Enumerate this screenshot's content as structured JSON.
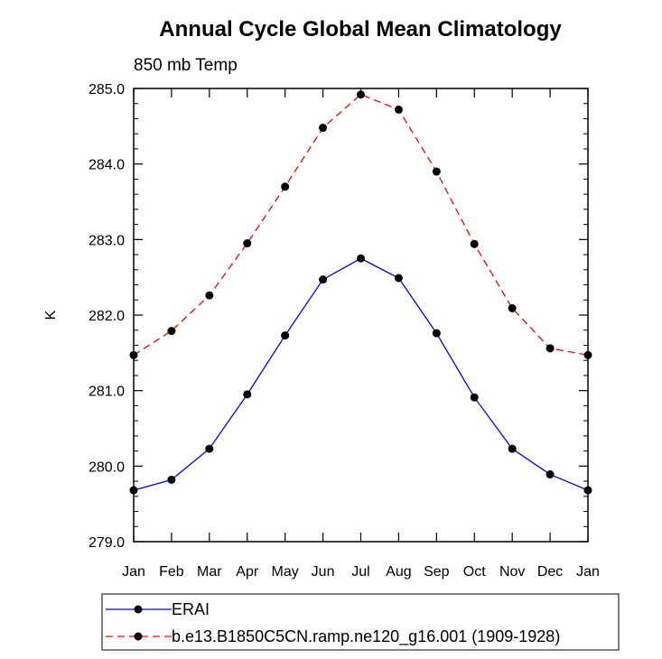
{
  "chart_data": {
    "type": "line",
    "title": "Annual Cycle Global Mean Climatology",
    "subtitle": "850 mb Temp",
    "xlabel": "",
    "ylabel": "K",
    "categories": [
      "Jan",
      "Feb",
      "Mar",
      "Apr",
      "May",
      "Jun",
      "Jul",
      "Aug",
      "Sep",
      "Oct",
      "Nov",
      "Dec",
      "Jan"
    ],
    "ylim": [
      279.0,
      285.0
    ],
    "yticks": [
      "279.0",
      "280.0",
      "281.0",
      "282.0",
      "283.0",
      "284.0",
      "285.0"
    ],
    "grid": false,
    "legend_position": "bottom",
    "series": [
      {
        "name": "ERAI",
        "color": "#0000ff",
        "dash": "solid",
        "marker": "circle",
        "values": [
          279.68,
          279.82,
          280.23,
          280.95,
          281.73,
          282.47,
          282.75,
          282.49,
          281.76,
          280.91,
          280.23,
          279.89,
          279.68
        ]
      },
      {
        "name": "b.e13.B1850C5CN.ramp.ne120_g16.001 (1909-1928)",
        "color": "#ff0000",
        "dash": "dashed",
        "marker": "circle",
        "values": [
          281.47,
          281.79,
          282.26,
          282.95,
          283.7,
          284.48,
          284.92,
          284.72,
          283.9,
          282.94,
          282.09,
          281.56,
          281.47
        ]
      }
    ]
  }
}
